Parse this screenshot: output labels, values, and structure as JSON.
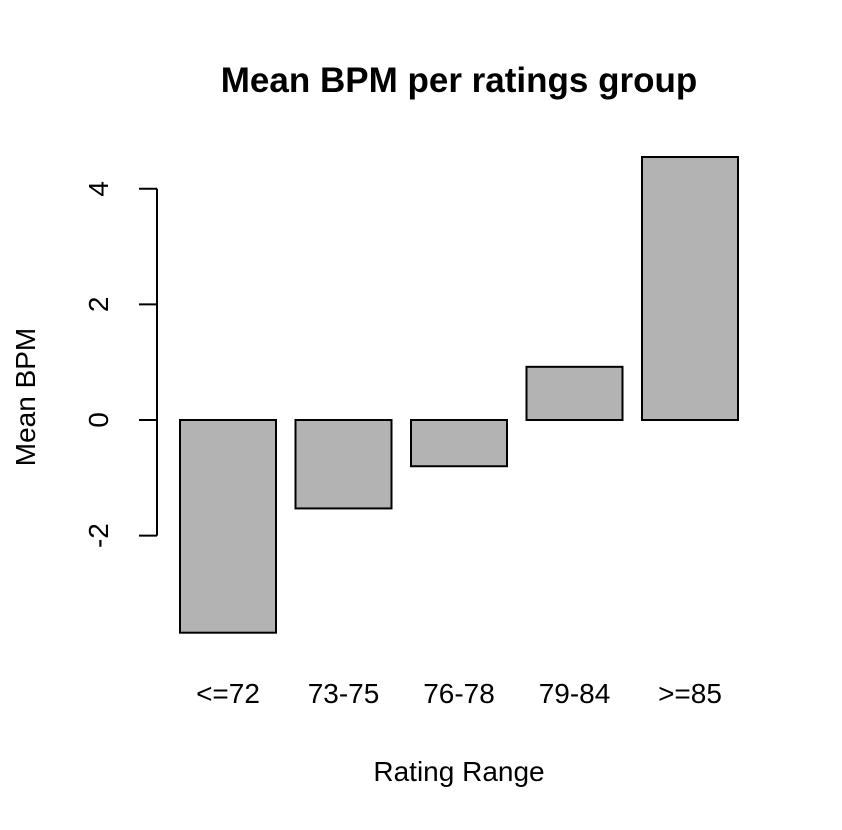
{
  "chart_data": {
    "type": "bar",
    "title": "Mean BPM per ratings group",
    "xlabel": "Rating Range",
    "ylabel": "Mean BPM",
    "categories": [
      "<=72",
      "73-75",
      "76-78",
      "79-84",
      ">=85"
    ],
    "values": [
      -3.68,
      -1.53,
      -0.8,
      0.92,
      4.55
    ],
    "yticks": [
      -2,
      0,
      2,
      4
    ],
    "bar_color": "#b3b3b3",
    "grid": false,
    "legend": "none"
  }
}
